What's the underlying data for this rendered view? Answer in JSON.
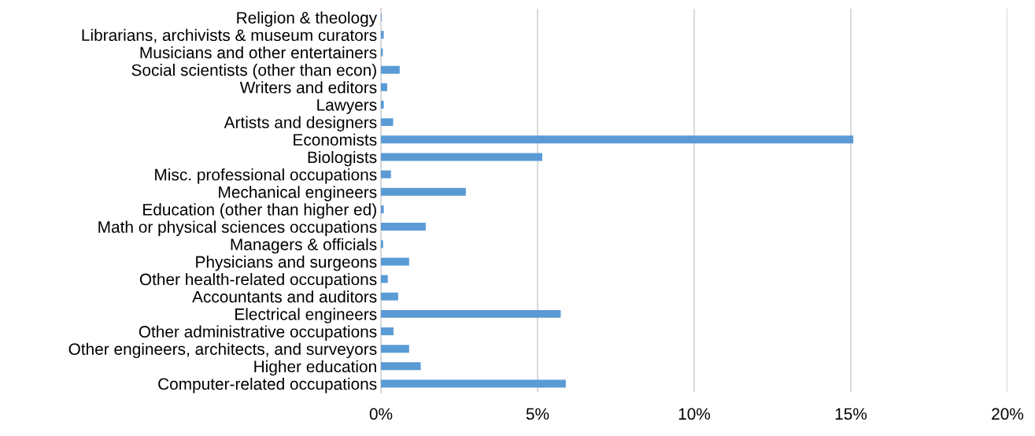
{
  "chart_data": {
    "type": "bar",
    "orientation": "horizontal",
    "categories": [
      "Religion & theology",
      "Librarians, archivists & museum curators",
      "Musicians and other entertainers",
      "Social scientists (other than econ)",
      "Writers and editors",
      "Lawyers",
      "Artists and designers",
      "Economists",
      "Biologists",
      "Misc. professional occupations",
      "Mechanical engineers",
      "Education (other than higher ed)",
      "Math or physical sciences occupations",
      "Managers & officials",
      "Physicians and surgeons",
      "Other health-related occupations",
      "Accountants and auditors",
      "Electrical engineers",
      "Other administrative occupations",
      "Other engineers, architects, and surveyors",
      "Higher education",
      "Computer-related occupations"
    ],
    "values": [
      0.02,
      0.09,
      0.06,
      0.6,
      0.2,
      0.09,
      0.39,
      15.08,
      5.15,
      0.32,
      2.71,
      0.09,
      1.43,
      0.07,
      0.9,
      0.22,
      0.55,
      5.74,
      0.4,
      0.9,
      1.27,
      5.9
    ],
    "color": "#5b9bd5",
    "xlim": [
      0,
      20
    ],
    "xticks": [
      {
        "value": 0,
        "label": "0%"
      },
      {
        "value": 5,
        "label": "5%"
      },
      {
        "value": 10,
        "label": "10%"
      },
      {
        "value": 15,
        "label": "15%"
      },
      {
        "value": 20,
        "label": "20%"
      }
    ],
    "grid": "x"
  }
}
